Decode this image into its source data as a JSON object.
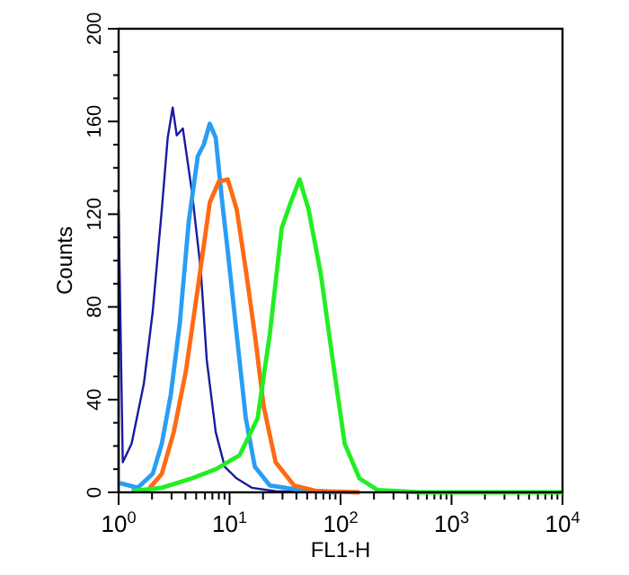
{
  "chart_data": {
    "type": "line",
    "xlabel": "FL1-H",
    "ylabel": "Counts",
    "log": "x",
    "grid": false,
    "marker": "none",
    "line_style": "solid",
    "xlim": [
      1,
      10000
    ],
    "ylim": [
      0,
      200
    ],
    "xticks": [
      {
        "value": 1,
        "label": "10$^{0}$"
      },
      {
        "value": 2,
        "label": null
      },
      {
        "value": 3,
        "label": null
      },
      {
        "value": 4,
        "label": null
      },
      {
        "value": 5,
        "label": null
      },
      {
        "value": 6,
        "label": null
      },
      {
        "value": 7,
        "label": null
      },
      {
        "value": 8,
        "label": null
      },
      {
        "value": 9,
        "label": null
      },
      {
        "value": 10,
        "label": "10$^{1}$"
      },
      {
        "value": 20,
        "label": null
      },
      {
        "value": 30,
        "label": null
      },
      {
        "value": 40,
        "label": null
      },
      {
        "value": 50,
        "label": null
      },
      {
        "value": 60,
        "label": null
      },
      {
        "value": 70,
        "label": null
      },
      {
        "value": 80,
        "label": null
      },
      {
        "value": 90,
        "label": null
      },
      {
        "value": 100,
        "label": "10$^{2}$"
      },
      {
        "value": 200,
        "label": null
      },
      {
        "value": 300,
        "label": null
      },
      {
        "value": 400,
        "label": null
      },
      {
        "value": 500,
        "label": null
      },
      {
        "value": 600,
        "label": null
      },
      {
        "value": 700,
        "label": null
      },
      {
        "value": 800,
        "label": null
      },
      {
        "value": 900,
        "label": null
      },
      {
        "value": 1000,
        "label": "10$^{3}$"
      },
      {
        "value": 2000,
        "label": null
      },
      {
        "value": 3000,
        "label": null
      },
      {
        "value": 4000,
        "label": null
      },
      {
        "value": 5000,
        "label": null
      },
      {
        "value": 6000,
        "label": null
      },
      {
        "value": 7000,
        "label": null
      },
      {
        "value": 8000,
        "label": null
      },
      {
        "value": 9000,
        "label": null
      },
      {
        "value": 10000,
        "label": "10$^{4}$"
      }
    ],
    "yticks": [
      0,
      {
        "value": 10,
        "label": null
      },
      {
        "value": 20,
        "label": null
      },
      {
        "value": 30,
        "label": null
      },
      40,
      {
        "value": 50,
        "label": null
      },
      {
        "value": 60,
        "label": null
      },
      {
        "value": 70,
        "label": null
      },
      80,
      {
        "value": 90,
        "label": null
      },
      {
        "value": 100,
        "label": null
      },
      {
        "value": 110,
        "label": null
      },
      120,
      {
        "value": 130,
        "label": null
      },
      {
        "value": 140,
        "label": null
      },
      {
        "value": 150,
        "label": null
      },
      160,
      {
        "value": 170,
        "label": null
      },
      {
        "value": 180,
        "label": null
      },
      {
        "value": 190,
        "label": null
      },
      200
    ],
    "series": [
      {
        "color": "#1a1aa0",
        "x": [
          1,
          1,
          1.09,
          1.31,
          1.69,
          2.03,
          2.45,
          2.77,
          3.07,
          3.34,
          3.79,
          4.57,
          5.5,
          6.23,
          7.5,
          9.05,
          11.6,
          15.8,
          26,
          90
        ],
        "values": [
          0,
          122,
          13,
          21,
          47,
          78,
          122,
          153,
          166,
          154,
          157,
          130,
          96,
          57,
          26,
          11,
          6,
          2,
          0.5,
          0
        ]
      },
      {
        "color": "#2a9df4",
        "x": [
          1.02,
          1.49,
          2.03,
          2.45,
          2.95,
          3.56,
          4.29,
          5.17,
          5.85,
          6.63,
          7.5,
          8.5,
          9.63,
          11.6,
          14,
          16.9,
          23,
          43,
          90
        ],
        "values": [
          4,
          2,
          8,
          21,
          42,
          73,
          117,
          145,
          150,
          159,
          153,
          127,
          104,
          68,
          32,
          11,
          3,
          1,
          0
        ]
      },
      {
        "color": "#ff6a13",
        "x": [
          1.91,
          2.45,
          3.14,
          4.03,
          5.17,
          6.63,
          7.98,
          9.63,
          11.6,
          14,
          16.9,
          20.3,
          26,
          38,
          62,
          148
        ],
        "values": [
          2,
          8,
          26,
          52,
          88,
          125,
          134,
          135,
          122,
          96,
          68,
          37,
          13,
          3,
          0.5,
          0
        ]
      },
      {
        "color": "#22ee22",
        "x": [
          1.31,
          2.45,
          4.57,
          7.5,
          12.3,
          17.9,
          23,
          29.5,
          35.5,
          42.8,
          51.5,
          66.5,
          85,
          109,
          148,
          216,
          517,
          10000
        ],
        "values": [
          0.5,
          2,
          6,
          10,
          16,
          32,
          68,
          114,
          125,
          135,
          122,
          94,
          57,
          21,
          6,
          1,
          0,
          0
        ]
      }
    ]
  }
}
